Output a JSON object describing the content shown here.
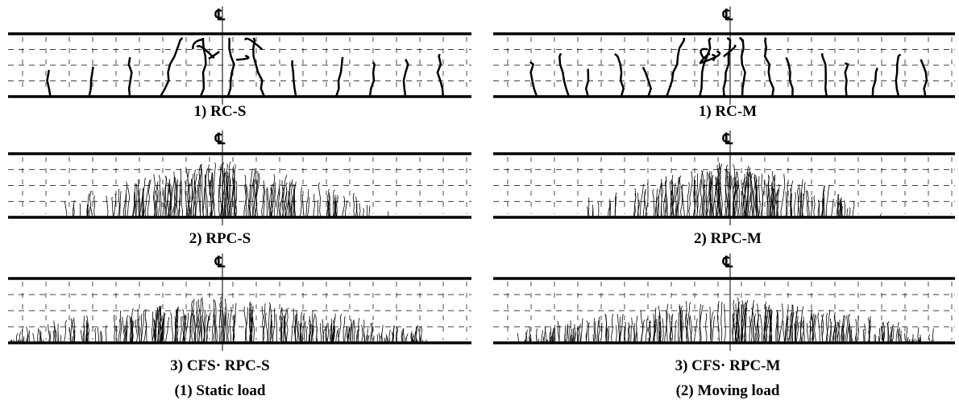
{
  "columns": [
    {
      "caption": "(1) Static load",
      "panels": [
        {
          "centerline": "℄",
          "label": "1) RC-S"
        },
        {
          "centerline": "℄",
          "label": "2) RPC-S"
        },
        {
          "centerline": "℄",
          "label": "3) CFS· RPC-S"
        }
      ]
    },
    {
      "caption": "(2) Moving load",
      "panels": [
        {
          "centerline": "℄",
          "label": "1) RC-M"
        },
        {
          "centerline": "℄",
          "label": "2) RPC-M"
        },
        {
          "centerline": "℄",
          "label": "3) CFS· RPC-M"
        }
      ]
    }
  ]
}
